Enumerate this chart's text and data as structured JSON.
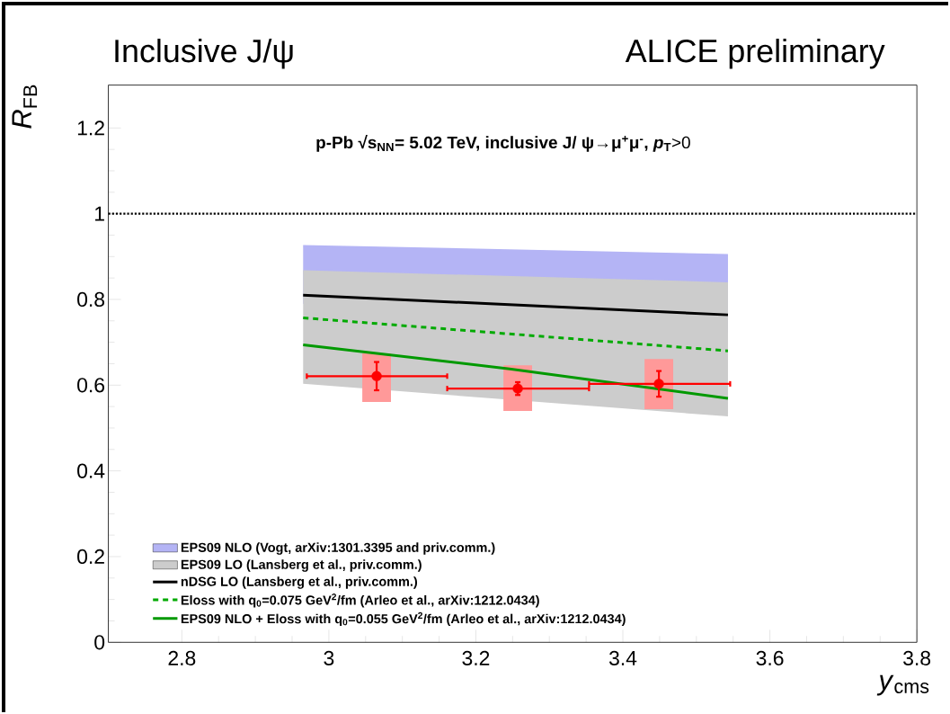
{
  "chart_data": {
    "type": "line",
    "title": "Inclusive J/ψ",
    "annotations": [
      "ALICE preliminary",
      "**p-Pb  √s$_{NN}$= 5.02 TeV, inclusive J/ ψ→μ$^{+}$μ$^{-}$,** ***p*$_{T}$**>0"
    ],
    "xlabel": "*y*$_{cms}$",
    "ylabel": "*R*$_{FB}$",
    "xlim": [
      2.7,
      3.8
    ],
    "xticks": [
      2.8,
      3,
      3.2,
      3.4,
      3.6,
      3.8
    ],
    "ylim": [
      0,
      1.3
    ],
    "yticks": [
      0,
      0.2,
      0.4,
      0.6,
      0.8,
      1,
      1.2
    ],
    "grid": false,
    "legend": "bottom left",
    "ref_lines": [
      {
        "axis": "y",
        "value": 1,
        "color": "#000000",
        "line_style": "dotted"
      }
    ],
    "series": [
      {
        "type": "area",
        "name": "EPS09 NLO (Vogt, arXiv:1301.3395 and priv.comm.)",
        "color": "#b4b4f5",
        "x": [
          2.965,
          3.543
        ],
        "values": [
          null,
          null
        ],
        "lower": [
          0.79,
          0.722
        ],
        "upper": [
          0.927,
          0.906
        ]
      },
      {
        "type": "area",
        "name": "EPS09 LO (Lansberg et al., priv.comm.)",
        "color": "#cccccc",
        "x": [
          2.965,
          3.543
        ],
        "values": [
          null,
          null
        ],
        "lower": [
          0.603,
          0.527
        ],
        "upper": [
          0.868,
          0.84
        ]
      },
      {
        "name": "nDSG LO (Lansberg et al., priv.comm.)",
        "color": "#000000",
        "line_style": "solid",
        "x": [
          2.965,
          3.543
        ],
        "values": [
          0.81,
          0.764
        ]
      },
      {
        "name": "Eloss with q$_{0}$=0.075 GeV$^{2}$/fm (Arleo et al., arXiv:1212.0434)",
        "color": "#00aa00",
        "line_style": "dashed",
        "x": [
          2.965,
          3.543
        ],
        "values": [
          0.757,
          0.68
        ]
      },
      {
        "name": "EPS09 NLO + Eloss with q$_{0}$=0.055 GeV$^{2}$/fm (Arleo et al., arXiv:1212.0434)",
        "color": "#009900",
        "line_style": "solid",
        "x": [
          2.965,
          3.246,
          3.543
        ],
        "values": [
          0.694,
          0.638,
          0.569
        ]
      },
      {
        "type": "bar",
        "color": "#ff9999",
        "x": [
          3.065,
          3.257,
          3.449
        ],
        "base": [
          0.561,
          0.54,
          0.544
        ],
        "values": [
          0.113,
          0.106,
          0.117
        ]
      },
      {
        "type": "scatter",
        "color": "#ff0000",
        "x": [
          3.065,
          3.257,
          3.449
        ],
        "values": [
          0.621,
          0.592,
          0.603
        ],
        "errors": [
          0.033,
          0.015,
          0.03
        ],
        "xerrors": [
          [
            2.97,
            3.161
          ],
          [
            3.161,
            3.354
          ],
          [
            3.354,
            3.546
          ]
        ]
      }
    ]
  }
}
